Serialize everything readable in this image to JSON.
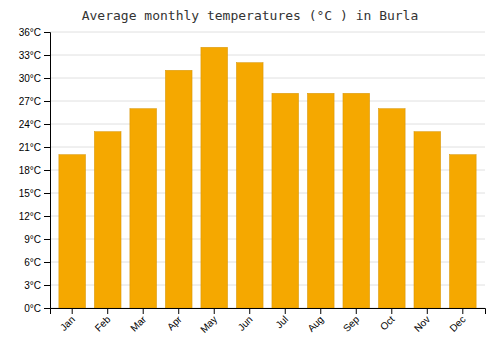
{
  "chart_data": {
    "type": "bar",
    "title": "Average monthly temperatures (°C ) in Burla",
    "categories": [
      "Jan",
      "Feb",
      "Mar",
      "Apr",
      "May",
      "Jun",
      "Jul",
      "Aug",
      "Sep",
      "Oct",
      "Nov",
      "Dec"
    ],
    "values": [
      20,
      23,
      26,
      31,
      34,
      32,
      28,
      28,
      28,
      26,
      23,
      20
    ],
    "color": "#F5A800",
    "ylim": [
      0,
      36
    ],
    "yticks": [
      {
        "value": 0,
        "label": "0°C"
      },
      {
        "value": 3,
        "label": "3°C"
      },
      {
        "value": 6,
        "label": "6°C"
      },
      {
        "value": 9,
        "label": "9°C"
      },
      {
        "value": 12,
        "label": "12°C"
      },
      {
        "value": 15,
        "label": "15°C"
      },
      {
        "value": 18,
        "label": "18°C"
      },
      {
        "value": 21,
        "label": "21°C"
      },
      {
        "value": 24,
        "label": "24°C"
      },
      {
        "value": 27,
        "label": "27°C"
      },
      {
        "value": 30,
        "label": "30°C"
      },
      {
        "value": 33,
        "label": "33°C"
      },
      {
        "value": 36,
        "label": "36°C"
      }
    ],
    "grid": true
  }
}
